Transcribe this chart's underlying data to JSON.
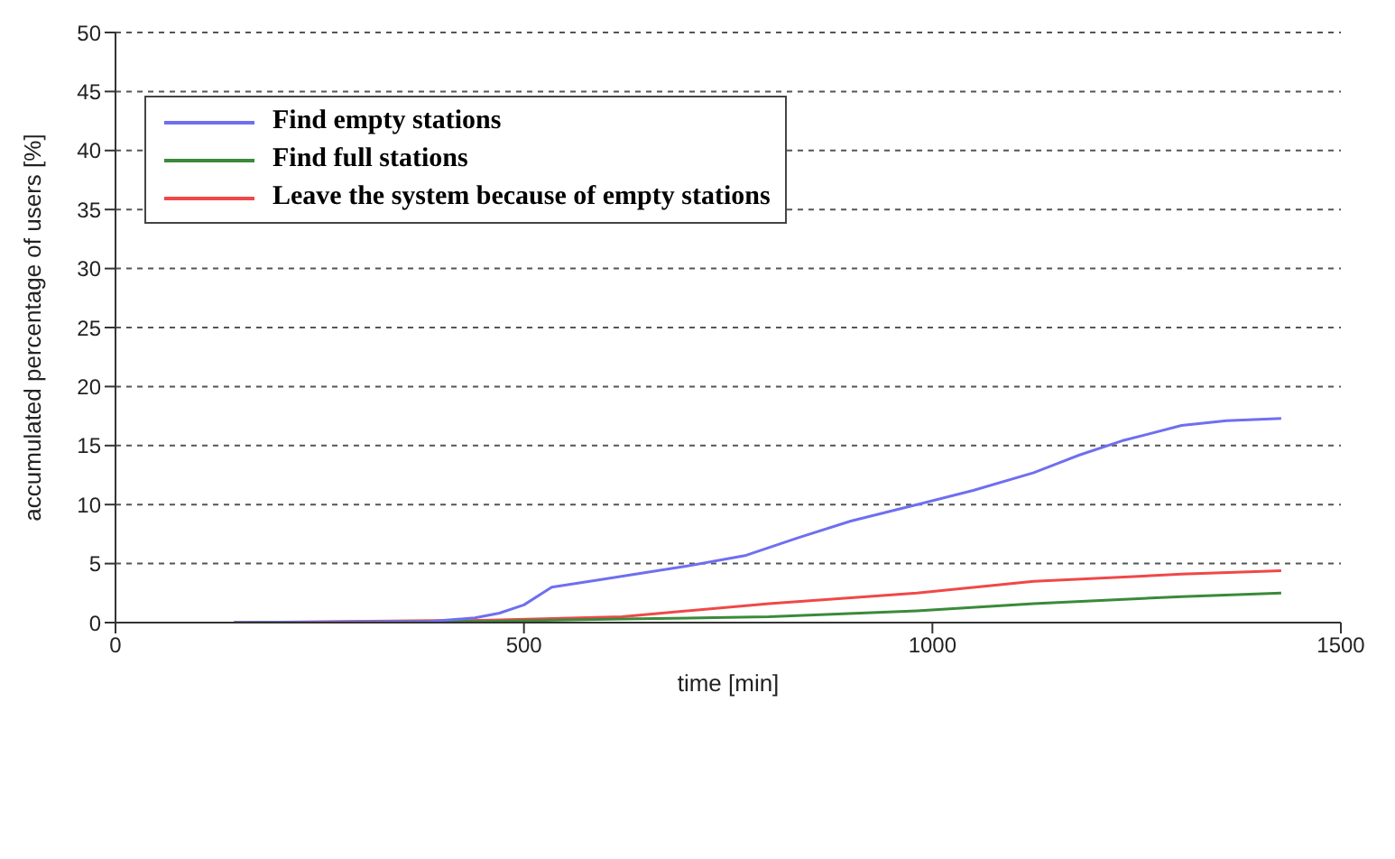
{
  "chart_data": {
    "type": "line",
    "xlabel": "time [min]",
    "ylabel": "accumulated percentage of users [%]",
    "xlim": [
      0,
      1500
    ],
    "xticks": [
      0,
      500,
      1000,
      1500
    ],
    "ylim": [
      0,
      50
    ],
    "yticks": [
      0,
      5,
      10,
      15,
      20,
      25,
      30,
      35,
      40,
      45,
      50
    ],
    "grid": "y",
    "legend": "top left",
    "marker": "none",
    "line_style": "solid",
    "series": [
      {
        "name": "Find empty stations",
        "color": "#6f6ff0",
        "x": [
          145,
          385,
          440,
          470,
          500,
          534,
          600,
          700,
          772,
          836,
          900,
          981,
          1050,
          1124,
          1180,
          1232,
          1305,
          1360,
          1427
        ],
        "values": [
          0,
          0.1,
          0.4,
          0.8,
          1.5,
          3,
          3.7,
          4.8,
          5.7,
          7.2,
          8.6,
          10,
          11.2,
          12.7,
          14.2,
          15.4,
          16.7,
          17.1,
          17.3
        ]
      },
      {
        "name": "Find full stations",
        "color": "#3a8a3a",
        "x": [
          145,
          450,
          620,
          800,
          981,
          1124,
          1305,
          1427
        ],
        "values": [
          0,
          0.1,
          0.3,
          0.5,
          1,
          1.6,
          2.2,
          2.5
        ]
      },
      {
        "name": "Leave the system because of empty stations",
        "color": "#f04848",
        "x": [
          145,
          450,
          620,
          800,
          981,
          1124,
          1305,
          1427
        ],
        "values": [
          0,
          0.2,
          0.5,
          1.6,
          2.5,
          3.5,
          4.1,
          4.4
        ]
      }
    ]
  }
}
